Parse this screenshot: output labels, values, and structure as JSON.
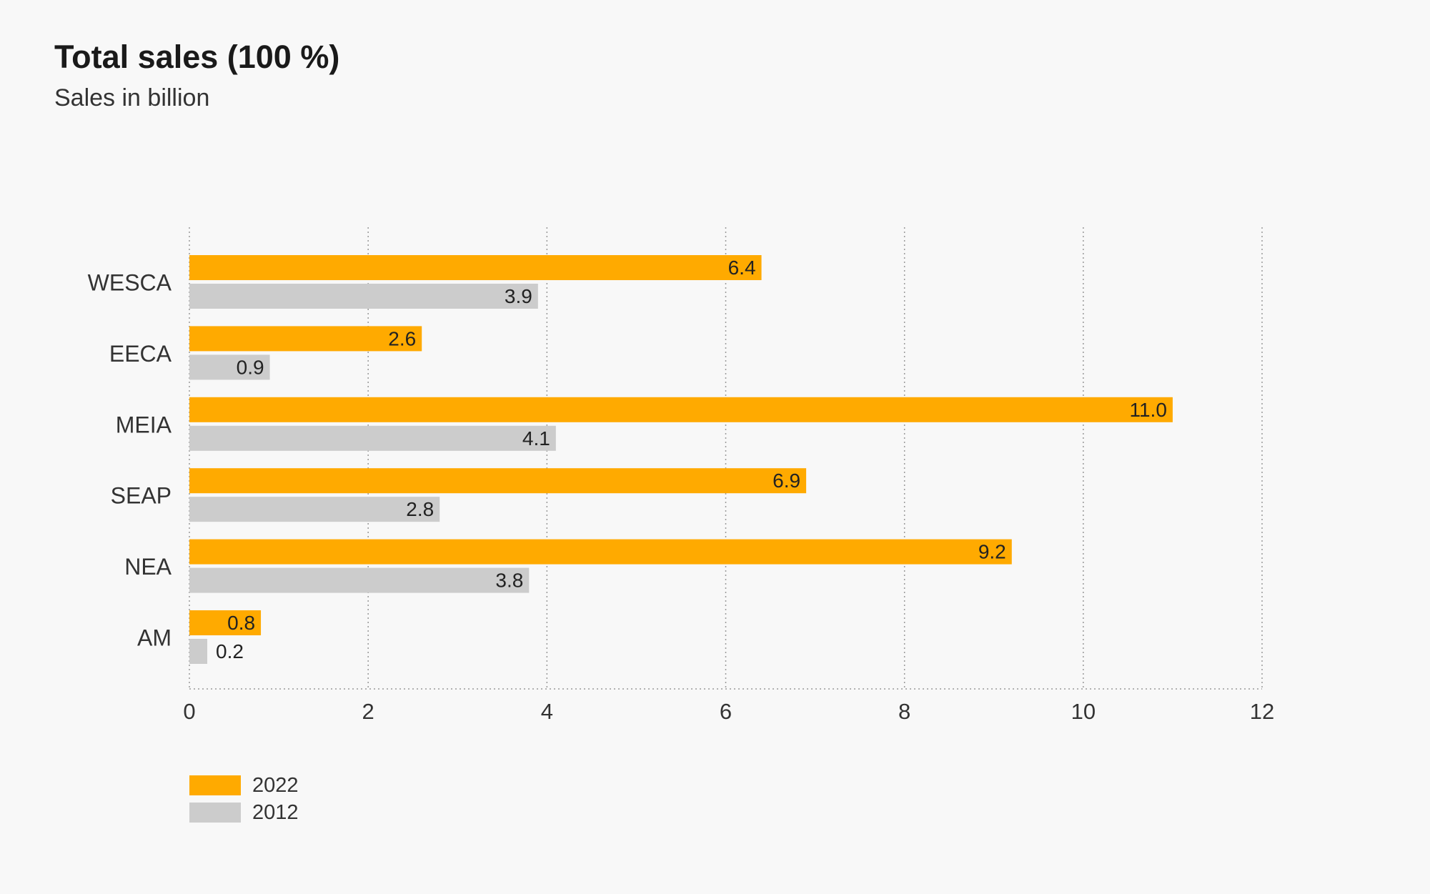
{
  "title": "Total sales (100 %)",
  "subtitle": "Sales in billion",
  "colors": {
    "series_2022": "#ffaa00",
    "series_2012": "#cccccc",
    "grid": "#999999",
    "text": "#222222"
  },
  "chart_data": {
    "type": "bar",
    "orientation": "horizontal",
    "title": "Total sales (100 %)",
    "subtitle": "Sales in billion",
    "categories": [
      "WESCA",
      "EECA",
      "MEIA",
      "SEAP",
      "NEA",
      "AM"
    ],
    "series": [
      {
        "name": "2022",
        "values": [
          6.4,
          2.6,
          11.0,
          6.9,
          9.2,
          0.8
        ],
        "labels": [
          "6.4",
          "2.6",
          "11.0",
          "6.9",
          "9.2",
          "0.8"
        ]
      },
      {
        "name": "2012",
        "values": [
          3.9,
          0.9,
          4.1,
          2.8,
          3.8,
          0.2
        ],
        "labels": [
          "3.9",
          "0.9",
          "4.1",
          "2.8",
          "3.8",
          "0.2"
        ]
      }
    ],
    "xlim": [
      0,
      12
    ],
    "xticks": [
      0,
      2,
      4,
      6,
      8,
      10,
      12
    ],
    "xtick_labels": [
      "0",
      "2",
      "4",
      "6",
      "8",
      "10",
      "12"
    ],
    "grid": "vertical dotted",
    "legend": "bottom-left"
  }
}
